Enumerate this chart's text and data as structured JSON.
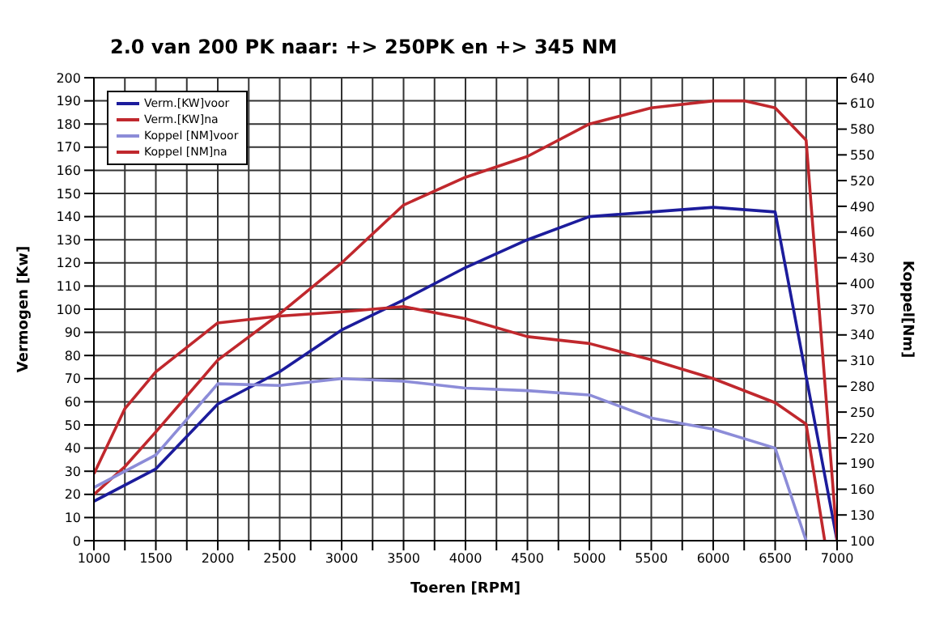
{
  "chart_data": {
    "type": "line",
    "title": "2.0 van 200 PK naar:  +> 250PK  en +> 345 NM",
    "xlabel": "Toeren [RPM]",
    "ylabel": "Vermogen [Kw]",
    "y2label": "Koppel[Nm]",
    "xlim": [
      1000,
      7000
    ],
    "xticks": [
      1000,
      {
        "value": 1250,
        "label": null
      },
      1500,
      {
        "value": 1750,
        "label": null
      },
      2000,
      {
        "value": 2250,
        "label": null
      },
      2500,
      {
        "value": 2750,
        "label": null
      },
      3000,
      {
        "value": 3250,
        "label": null
      },
      3500,
      {
        "value": 3750,
        "label": null
      },
      4000,
      {
        "value": 4250,
        "label": null
      },
      4500,
      {
        "value": 4750,
        "label": null
      },
      5000,
      {
        "value": 5250,
        "label": null
      },
      5500,
      {
        "value": 5750,
        "label": null
      },
      6000,
      {
        "value": 6250,
        "label": null
      },
      6500,
      {
        "value": 6750,
        "label": null
      },
      7000
    ],
    "ylim": [
      0,
      200
    ],
    "yticks": [
      0,
      10,
      20,
      30,
      40,
      50,
      60,
      70,
      80,
      90,
      100,
      110,
      120,
      130,
      140,
      150,
      160,
      170,
      180,
      190,
      200
    ],
    "y2lim": [
      100,
      640
    ],
    "y2ticks": [
      100,
      130,
      160,
      190,
      220,
      250,
      280,
      310,
      340,
      370,
      400,
      430,
      460,
      490,
      520,
      550,
      580,
      610,
      640
    ],
    "grid": true,
    "legend": "top left",
    "marker": "none",
    "line_style": "solid",
    "series": [
      {
        "name": "Verm.[KW]voor",
        "color": "#1c1c9c",
        "x": [
          1000,
          1500,
          2000,
          2500,
          3000,
          3500,
          4000,
          4500,
          5000,
          5500,
          6000,
          6500,
          7000
        ],
        "values": [
          17,
          31,
          59,
          73,
          91,
          104,
          118,
          130,
          140,
          142,
          144,
          142,
          0
        ]
      },
      {
        "name": "Verm.[KW]na",
        "color": "#c0282d",
        "x": [
          1000,
          1250,
          1500,
          2000,
          2500,
          3000,
          3500,
          4000,
          4500,
          5000,
          5500,
          6000,
          6250,
          6500,
          6750,
          7000
        ],
        "values": [
          20,
          32,
          47,
          78,
          98,
          120,
          145,
          157,
          166,
          180,
          187,
          190,
          190,
          187,
          173,
          0
        ]
      },
      {
        "name": "Koppel [NM]voor",
        "color": "#8c8cd8",
        "axis": "y2",
        "x": [
          1000,
          1500,
          2000,
          2500,
          3000,
          3500,
          4000,
          4500,
          5000,
          5500,
          6000,
          6500,
          6750
        ],
        "values": [
          162,
          200,
          283,
          281,
          289,
          286,
          278,
          275,
          270,
          243,
          230,
          208,
          100
        ]
      },
      {
        "name": "Koppel [NM]na",
        "color": "#c0282d",
        "axis": "y2",
        "x": [
          1000,
          1250,
          1500,
          2000,
          2500,
          3000,
          3500,
          4000,
          4500,
          5000,
          5500,
          6000,
          6500,
          6750,
          6900
        ],
        "values": [
          178,
          254,
          297,
          354,
          362,
          367,
          373,
          359,
          338,
          330,
          311,
          289,
          261,
          236,
          100
        ]
      }
    ]
  }
}
